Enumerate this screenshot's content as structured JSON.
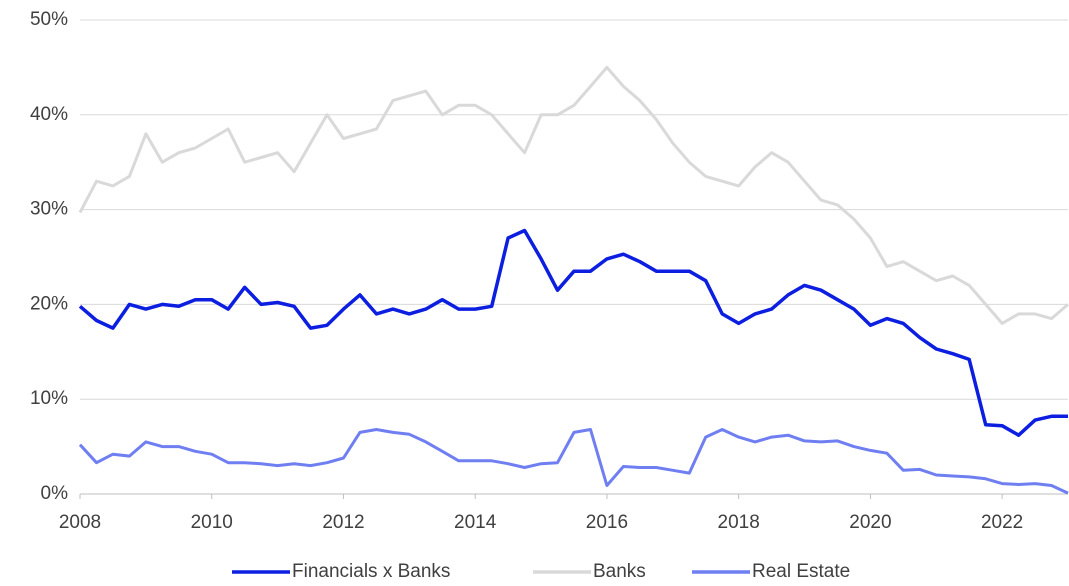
{
  "chart_data": {
    "type": "line",
    "x": [
      2008,
      2008.25,
      2008.5,
      2008.75,
      2009,
      2009.25,
      2009.5,
      2009.75,
      2010,
      2010.25,
      2010.5,
      2010.75,
      2011,
      2011.25,
      2011.5,
      2011.75,
      2012,
      2012.25,
      2012.5,
      2012.75,
      2013,
      2013.25,
      2013.5,
      2013.75,
      2014,
      2014.25,
      2014.5,
      2014.75,
      2015,
      2015.25,
      2015.5,
      2015.75,
      2016,
      2016.25,
      2016.5,
      2016.75,
      2017,
      2017.25,
      2017.5,
      2017.75,
      2018,
      2018.25,
      2018.5,
      2018.75,
      2019,
      2019.25,
      2019.5,
      2019.75,
      2020,
      2020.25,
      2020.5,
      2020.75,
      2021,
      2021.25,
      2021.5,
      2021.75,
      2022,
      2022.25,
      2022.5,
      2022.75,
      2023
    ],
    "series": [
      {
        "name": "Financials x Banks",
        "color": "#0c1ee0",
        "values": [
          19.8,
          18.3,
          17.5,
          20,
          19.5,
          20,
          19.8,
          20.5,
          20.5,
          19.5,
          21.8,
          20.0,
          20.2,
          19.8,
          17.5,
          17.8,
          19.5,
          21,
          19,
          19.5,
          19,
          19.5,
          20.5,
          19.5,
          19.5,
          19.8,
          27,
          27.8,
          24.8,
          21.5,
          23.5,
          23.5,
          24.8,
          25.3,
          24.5,
          23.5,
          23.5,
          23.5,
          22.5,
          19,
          18,
          19,
          19.5,
          21,
          22,
          21.5,
          20.5,
          19.5,
          17.8,
          18.5,
          18,
          16.5,
          15.3,
          14.8,
          14.2,
          7.3,
          7.2,
          6.2,
          7.8,
          8.2,
          8.2
        ]
      },
      {
        "name": "Banks",
        "color": "#d9d9d9",
        "values": [
          29.7,
          33,
          32.5,
          33.5,
          38,
          35,
          36,
          36.5,
          37.5,
          38.5,
          35,
          35.5,
          36,
          34,
          37,
          40,
          37.5,
          38,
          38.5,
          41.5,
          42,
          42.5,
          40,
          41,
          41,
          40,
          38,
          36,
          40,
          40,
          41,
          43,
          45,
          43,
          41.5,
          39.5,
          37,
          35,
          33.5,
          33,
          32.5,
          34.5,
          36,
          35,
          33,
          31,
          30.5,
          29,
          27,
          24,
          24.5,
          23.5,
          22.5,
          23,
          22,
          20,
          18,
          19,
          19,
          18.5,
          20
        ]
      },
      {
        "name": "Real Estate",
        "color": "#6f7ff2",
        "values": [
          5.2,
          3.3,
          4.2,
          4.0,
          5.5,
          5.0,
          5.0,
          4.5,
          4.2,
          3.3,
          3.3,
          3.2,
          3.0,
          3.2,
          3.0,
          3.3,
          3.8,
          6.5,
          6.8,
          6.5,
          6.3,
          5.5,
          4.5,
          3.5,
          3.5,
          3.5,
          3.2,
          2.8,
          3.2,
          3.3,
          6.5,
          6.8,
          0.9,
          2.9,
          2.8,
          2.8,
          2.5,
          2.2,
          6.0,
          6.8,
          6.0,
          5.5,
          6.0,
          6.2,
          5.6,
          5.5,
          5.6,
          5.0,
          4.6,
          4.3,
          2.5,
          2.6,
          2.0,
          1.9,
          1.8,
          1.6,
          1.1,
          1.0,
          1.1,
          0.9,
          0.1
        ]
      }
    ],
    "xlim": [
      2008,
      2023
    ],
    "xticks": [
      2008,
      2010,
      2012,
      2014,
      2016,
      2018,
      2020,
      2022
    ],
    "ylim": [
      0,
      50
    ],
    "yticks": [
      {
        "value": 0,
        "label": "0%"
      },
      {
        "value": 10,
        "label": "10%"
      },
      {
        "value": 20,
        "label": "20%"
      },
      {
        "value": 30,
        "label": "30%"
      },
      {
        "value": 40,
        "label": "40%"
      },
      {
        "value": 50,
        "label": "50%"
      }
    ],
    "grid": true,
    "legend": "bottom"
  }
}
